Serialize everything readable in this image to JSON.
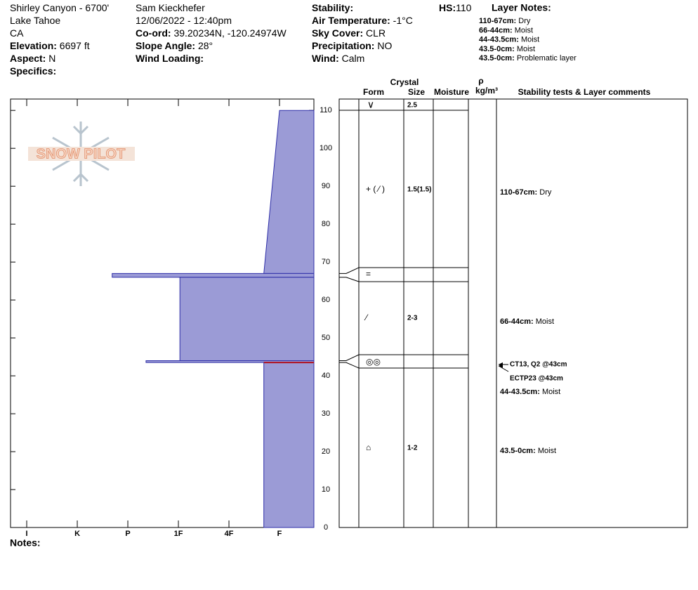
{
  "header": {
    "col1": [
      {
        "value": "Shirley Canyon - 6700'"
      },
      {
        "value": "Lake Tahoe"
      },
      {
        "value": "CA"
      },
      {
        "label": "Elevation:",
        "value": "6697 ft"
      },
      {
        "label": "Aspect:",
        "value": "N"
      },
      {
        "label": "Specifics:"
      }
    ],
    "col2": [
      {
        "value": "Sam Kieckhefer"
      },
      {
        "value": "12/06/2022 - 12:40pm"
      },
      {
        "label": "Co-ord:",
        "value": "39.20234N, -120.24974W"
      },
      {
        "label": "Slope Angle:",
        "value": "28°"
      },
      {
        "label": "Wind Loading:"
      }
    ],
    "col3": [
      {
        "label": "Stability:"
      },
      {
        "label": "Air Temperature:",
        "value": "-1°C"
      },
      {
        "label": "Sky Cover:",
        "value": "CLR"
      },
      {
        "label": "Precipitation:",
        "value": "NO"
      },
      {
        "label": "Wind:",
        "value": " Calm"
      }
    ],
    "hs": {
      "label": "HS:",
      "value": "110"
    },
    "layer_notes_title": "Layer Notes:",
    "layer_notes": [
      {
        "label": "110-67cm:",
        "value": "Dry"
      },
      {
        "label": "66-44cm:",
        "value": "Moist"
      },
      {
        "label": "44-43.5cm:",
        "value": "Moist"
      },
      {
        "label": "43.5-0cm:",
        "value": "Moist"
      },
      {
        "label": "43.5-0cm:",
        "value": "Problematic layer"
      }
    ]
  },
  "logo": "SNOW PILOT",
  "profile": {
    "ylim": [
      0,
      113
    ],
    "yticks": [
      0,
      10,
      20,
      30,
      40,
      50,
      60,
      70,
      80,
      90,
      100,
      110
    ],
    "xlim": [
      6.32,
      0.32
    ],
    "xticks": [
      {
        "value": 6,
        "label": "I"
      },
      {
        "value": 5,
        "label": "K"
      },
      {
        "value": 4,
        "label": "P"
      },
      {
        "value": 3,
        "label": "1F"
      },
      {
        "value": 2,
        "label": "4F"
      },
      {
        "value": 1,
        "label": "F"
      }
    ],
    "color": "#9b9bd6",
    "layers": [
      {
        "top": 110,
        "bottom": 67,
        "hardness_top": 1,
        "hardness_bottom": 1.31,
        "form": "+ ( ⁄ )",
        "size": "1.5(1.5)"
      },
      {
        "top": 67,
        "bottom": 66,
        "hardness_top": 4.31,
        "hardness_bottom": 4.31,
        "form": "="
      },
      {
        "top": 66,
        "bottom": 44,
        "hardness_top": 2.97,
        "hardness_bottom": 2.97,
        "form": "⁄",
        "size": "2-3"
      },
      {
        "top": 44,
        "bottom": 43.5,
        "hardness_top": 3.64,
        "hardness_bottom": 3.64,
        "form": "◎◎"
      },
      {
        "top": 43.5,
        "bottom": 0,
        "hardness_top": 1.31,
        "hardness_bottom": 1.31,
        "form": "⌂",
        "size": "1-2",
        "problematic": true
      }
    ],
    "surface": {
      "form": "∨",
      "size": "2.5"
    }
  },
  "table_headers": {
    "crystal": "Crystal",
    "form": "Form",
    "size": "Size",
    "moisture": "Moisture",
    "rho": "ρ",
    "density_unit": "kg/m³",
    "comments": "Stability tests & Layer comments"
  },
  "tests": [
    {
      "label": "CT13, Q2 @43cm",
      "depth": 43
    },
    {
      "label": "ECTP23 @43cm",
      "depth": 43
    }
  ],
  "notes_label": "Notes:"
}
